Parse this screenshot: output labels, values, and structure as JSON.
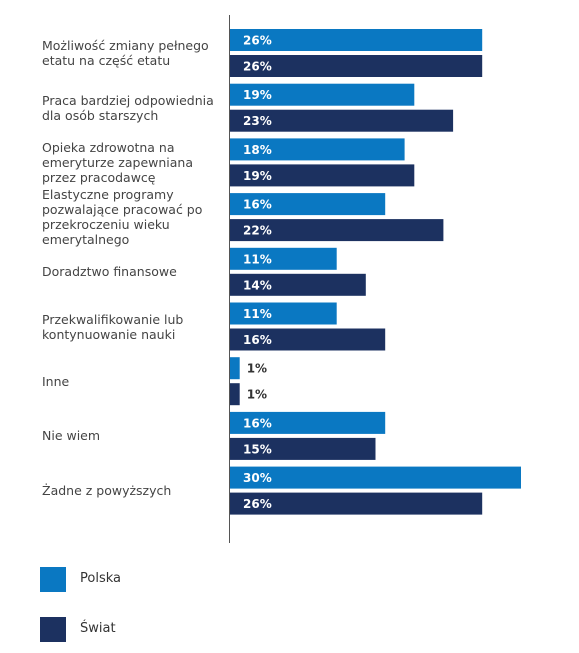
{
  "chart_data": {
    "type": "hbar",
    "categories": [
      "Możliwość zmiany pełnego etatu na część etatu",
      "Praca bardziej odpowiednia dla osób starszych",
      "Opieka zdrowotna na emeryturze zapewniana przez pracodawcę",
      "Elastyczne programy pozwalające pracować po przekroczeniu wieku emerytalnego",
      "Doradztwo finansowe",
      "Przekwalifikowanie lub kontynuowanie nauki",
      "Inne",
      "Nie wiem",
      "Żadne z powyższych"
    ],
    "series": [
      {
        "name": "Polska",
        "color": "#0a78c2",
        "values": [
          26,
          19,
          18,
          16,
          11,
          11,
          1,
          16,
          30
        ],
        "value_labels": [
          "26%",
          "19%",
          "18%",
          "16%",
          "11%",
          "11%",
          "1%",
          "16%",
          "30%"
        ]
      },
      {
        "name": "Świat",
        "color": "#1c3160",
        "values": [
          26,
          23,
          19,
          22,
          14,
          16,
          1,
          15,
          26
        ],
        "value_labels": [
          "26%",
          "23%",
          "19%",
          "22%",
          "14%",
          "16%",
          "1%",
          "15%",
          "26%"
        ]
      }
    ]
  }
}
